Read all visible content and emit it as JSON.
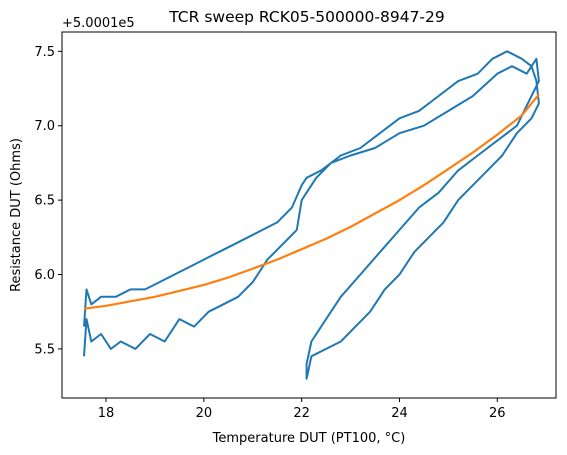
{
  "chart_data": {
    "type": "line",
    "title": "TCR sweep RCK05-500000-8947-29",
    "xlabel": "Temperature DUT (PT100, °C)",
    "ylabel": "Resistance DUT (Ohms)",
    "y_offset_label": "+5.0001e5",
    "xlim": [
      17.1,
      27.2
    ],
    "ylim": [
      5.17,
      7.63
    ],
    "x_ticks": [
      18,
      20,
      22,
      24,
      26
    ],
    "y_ticks": [
      5.5,
      6.0,
      6.5,
      7.0,
      7.5
    ],
    "x_tick_labels": [
      "18",
      "20",
      "22",
      "24",
      "26"
    ],
    "y_tick_labels": [
      "5.5",
      "6.0",
      "6.5",
      "7.0",
      "7.5"
    ],
    "grid": false,
    "series": [
      {
        "color": "#1f77b4",
        "x": [
          17.55,
          17.6,
          17.7,
          17.9,
          18.1,
          18.3,
          18.6,
          18.9,
          19.2,
          19.5,
          19.8,
          20.1,
          20.4,
          20.7,
          21.0,
          21.3,
          21.6,
          21.9,
          22.0,
          22.3,
          22.6,
          23.0,
          23.5,
          24.0,
          24.5,
          25.0,
          25.5,
          26.0,
          26.3,
          26.6,
          26.8,
          26.85,
          26.7,
          26.4,
          26.0,
          25.6,
          25.2,
          24.8,
          24.4,
          24.0,
          23.6,
          23.2,
          22.8,
          22.5,
          22.2,
          22.1,
          22.1,
          22.2,
          22.5,
          22.8,
          23.1,
          23.4,
          23.7,
          24.0,
          24.3,
          24.6,
          24.9,
          25.2,
          25.5,
          25.8,
          26.1,
          26.4,
          26.7,
          26.85,
          26.8,
          26.7,
          26.5,
          26.2,
          25.9,
          25.6,
          25.2,
          24.8,
          24.4,
          24.0,
          23.6,
          23.2,
          22.8,
          22.4,
          22.1,
          22.0,
          21.8,
          21.5,
          21.2,
          20.9,
          20.6,
          20.3,
          20.0,
          19.7,
          19.4,
          19.1,
          18.8,
          18.5,
          18.2,
          17.9,
          17.7,
          17.6,
          17.55
        ],
        "y": [
          5.45,
          5.7,
          5.55,
          5.6,
          5.5,
          5.55,
          5.5,
          5.6,
          5.55,
          5.7,
          5.65,
          5.75,
          5.8,
          5.85,
          5.95,
          6.1,
          6.2,
          6.3,
          6.5,
          6.65,
          6.75,
          6.8,
          6.85,
          6.95,
          7.0,
          7.1,
          7.2,
          7.35,
          7.4,
          7.35,
          7.45,
          7.3,
          7.2,
          7.0,
          6.9,
          6.8,
          6.7,
          6.55,
          6.45,
          6.3,
          6.15,
          6.0,
          5.85,
          5.7,
          5.55,
          5.4,
          5.3,
          5.45,
          5.5,
          5.55,
          5.65,
          5.75,
          5.9,
          6.0,
          6.15,
          6.25,
          6.35,
          6.5,
          6.6,
          6.7,
          6.8,
          6.95,
          7.05,
          7.15,
          7.3,
          7.4,
          7.45,
          7.5,
          7.45,
          7.35,
          7.3,
          7.2,
          7.1,
          7.05,
          6.95,
          6.85,
          6.8,
          6.7,
          6.65,
          6.6,
          6.45,
          6.35,
          6.3,
          6.25,
          6.2,
          6.15,
          6.1,
          6.05,
          6.0,
          5.95,
          5.9,
          5.9,
          5.85,
          5.85,
          5.8,
          5.9,
          5.65
        ]
      },
      {
        "color": "#ff7f0e",
        "x": [
          17.55,
          18.0,
          18.5,
          19.0,
          19.5,
          20.0,
          20.5,
          21.0,
          21.5,
          22.0,
          22.5,
          23.0,
          23.5,
          24.0,
          24.5,
          25.0,
          25.5,
          26.0,
          26.5,
          26.85
        ],
        "y": [
          5.77,
          5.79,
          5.82,
          5.85,
          5.89,
          5.93,
          5.98,
          6.04,
          6.1,
          6.17,
          6.24,
          6.32,
          6.41,
          6.5,
          6.6,
          6.71,
          6.82,
          6.94,
          7.07,
          7.21
        ]
      }
    ]
  }
}
